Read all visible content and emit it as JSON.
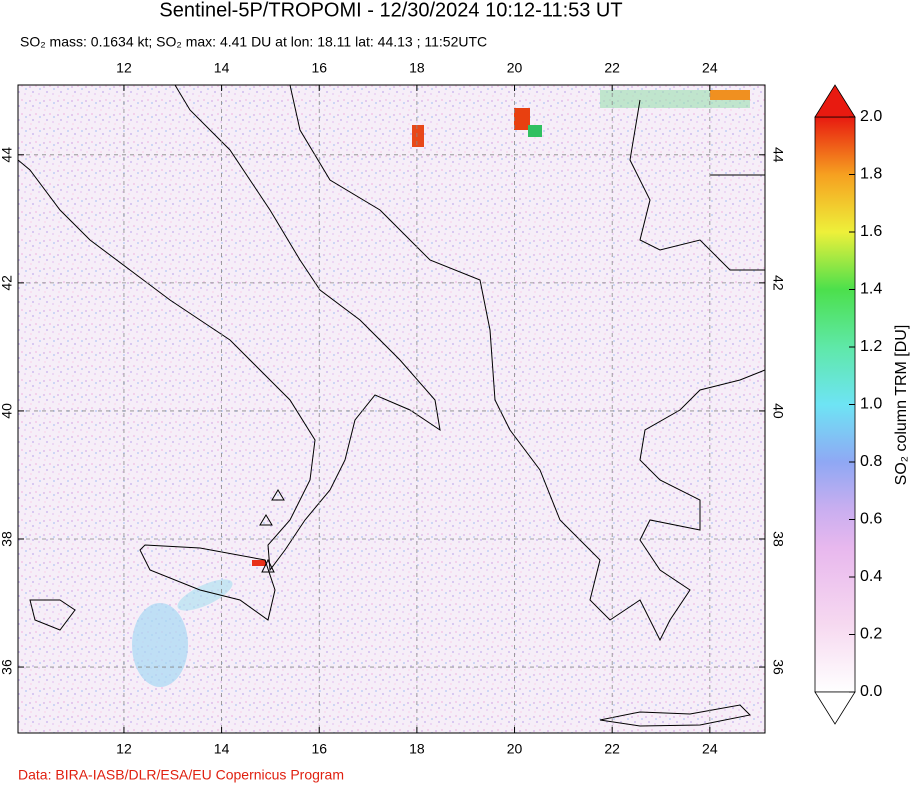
{
  "title": "Sentinel-5P/TROPOMI - 12/30/2024 10:12-11:53 UT",
  "subtitle": "SO₂ mass: 0.1634 kt; SO₂ max: 4.41 DU at lon: 18.11 lat: 44.13 ; 11:52UTC",
  "map": {
    "lon_range": [
      9.83,
      25.13
    ],
    "lat_range": [
      34.97,
      45.09
    ],
    "lon_ticks": [
      12,
      14,
      16,
      18,
      20,
      22,
      24
    ],
    "lat_ticks": [
      36,
      38,
      40,
      42,
      44
    ]
  },
  "colorbar": {
    "label": "SO₂ column TRM [DU]",
    "range": [
      0,
      2
    ],
    "ticks": [
      {
        "value": 0,
        "label": "0.0"
      },
      {
        "value": 0.2,
        "label": "0.2"
      },
      {
        "value": 0.4,
        "label": "0.4"
      },
      {
        "value": 0.6,
        "label": "0.6"
      },
      {
        "value": 0.8,
        "label": "0.8"
      },
      {
        "value": 1,
        "label": "1.0"
      },
      {
        "value": 1.2,
        "label": "1.2"
      },
      {
        "value": 1.4,
        "label": "1.4"
      },
      {
        "value": 1.6,
        "label": "1.6"
      },
      {
        "value": 1.8,
        "label": "1.8"
      },
      {
        "value": 2,
        "label": "2.0"
      }
    ]
  },
  "credit": "Data: BIRA-IASB/DLR/ESA/EU Copernicus Program"
}
